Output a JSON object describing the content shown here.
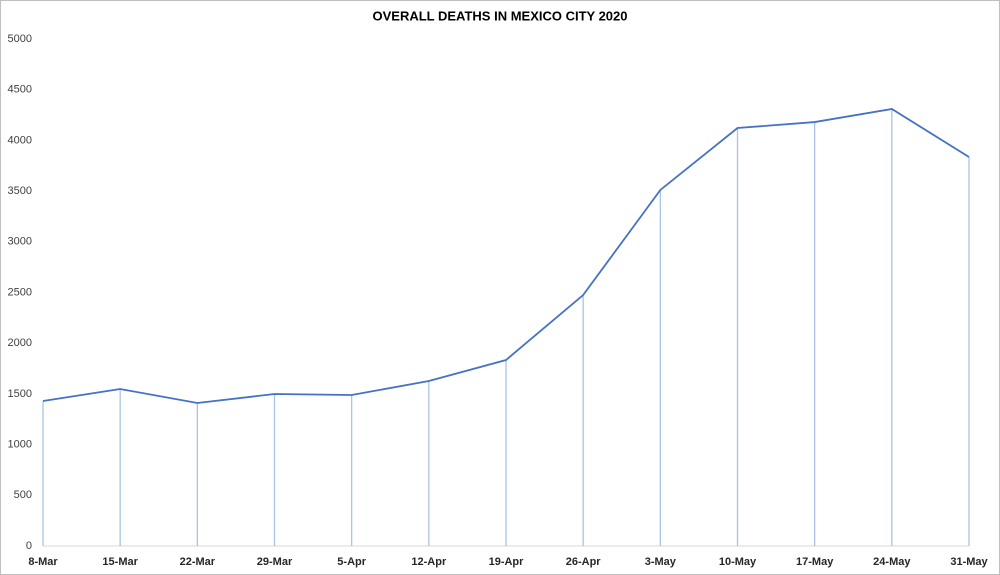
{
  "chart_data": {
    "type": "line",
    "title": "OVERALL DEATHS IN MEXICO CITY 2020",
    "categories": [
      "8-Mar",
      "15-Mar",
      "22-Mar",
      "29-Mar",
      "5-Apr",
      "12-Apr",
      "19-Apr",
      "26-Apr",
      "3-May",
      "10-May",
      "17-May",
      "24-May",
      "31-May"
    ],
    "values": [
      1430,
      1548,
      1410,
      1499,
      1489,
      1627,
      1834,
      2475,
      3511,
      4122,
      4181,
      4310,
      3836
    ],
    "color": "#4472c4",
    "drop_lines": true,
    "drop_line_color": "#a9c4e8",
    "ylim": [
      0,
      5000
    ],
    "yticks": [
      0,
      500,
      1000,
      1500,
      2000,
      2500,
      3000,
      3500,
      4000,
      4500,
      5000
    ],
    "grid": false
  }
}
